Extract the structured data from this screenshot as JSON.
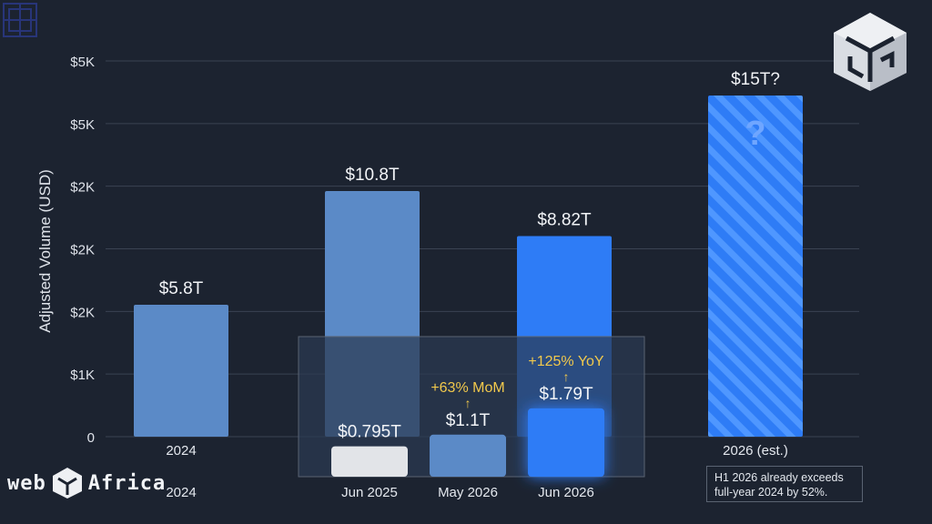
{
  "chart_data": {
    "type": "bar",
    "ylabel": "Adjusted Volume (USD)",
    "y_tick_labels": [
      "0",
      "$1K",
      "$2K",
      "$2K",
      "$2K",
      "$5K",
      "$5K"
    ],
    "main_bars": [
      {
        "category": "2024",
        "value_label": "$5.8T",
        "value": 5.8,
        "color": "#5b8ac7",
        "style": "solid"
      },
      {
        "category": "",
        "value_label": "$10.8T",
        "value": 10.8,
        "color": "#5b8ac7",
        "style": "solid"
      },
      {
        "category": "",
        "value_label": "$8.82T",
        "value": 8.82,
        "color": "#2e7cf6",
        "style": "solid"
      },
      {
        "category": "2026 (est.)",
        "value_label": "$15T?",
        "value": 15,
        "color": "#2e7cf6",
        "style": "hatched",
        "glyph": "?"
      }
    ],
    "inset_bars": [
      {
        "category": "Jun 2025",
        "value_label": "$0.795T",
        "value": 0.795,
        "color": "#e2e4e8"
      },
      {
        "category": "May 2026",
        "value_label": "$1.1T",
        "value": 1.1,
        "color": "#5b8ac7",
        "change_label": "+63% MoM",
        "arrow": "↑"
      },
      {
        "category": "Jun 2026",
        "value_label": "$1.79T",
        "value": 1.79,
        "color": "#2e7cf6",
        "change_label": "+125% YoY",
        "arrow": "↑",
        "glow": true
      }
    ],
    "extra_x_label": "2024",
    "grid": true,
    "accent_color": "#f2c94c"
  },
  "footer": {
    "brand_text": "web",
    "brand_text2": "Africa",
    "note_line1": "H1 2026 already exceeds",
    "note_line2": "full-year 2024 by 52%."
  },
  "icons": {
    "top_right": "cube-logo-icon",
    "top_left": "corner-mark-icon",
    "brand": "cube-brand-icon"
  }
}
